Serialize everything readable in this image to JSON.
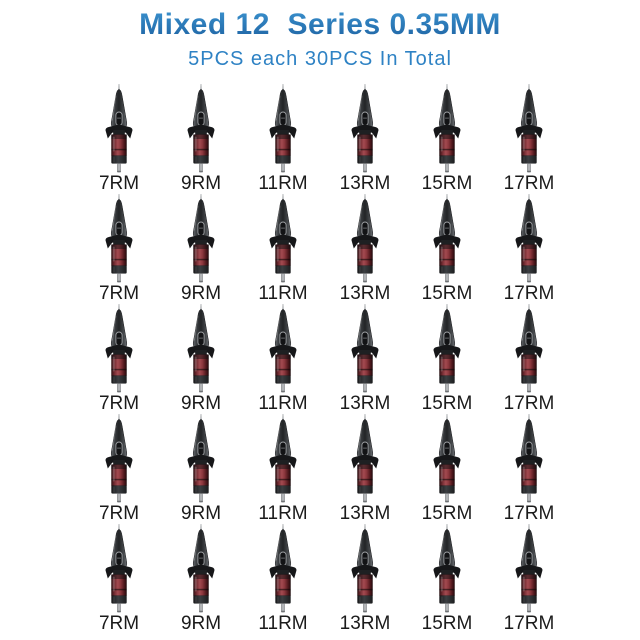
{
  "header": {
    "title": "Mixed 12  Series 0.35MM",
    "subtitle": "5PCS each 30PCS In Total"
  },
  "grid": {
    "rows": 5,
    "columns": 6,
    "cell_labels": [
      "7RM",
      "9RM",
      "11RM",
      "13RM",
      "15RM",
      "17RM"
    ],
    "pieces_per_size": "5PCS",
    "total_pieces": "30PCS",
    "item_description": "tattoo needle cartridge"
  },
  "colors": {
    "background": "#ffffff",
    "title_gradient_top": "#3e97d3",
    "title_gradient_bottom": "#1a5d9d",
    "subtitle_blue": "#2e82c4",
    "label_text": "#1b1b1b",
    "cartridge_body_red": "#8c3a40",
    "cartridge_plastic_dark": "#2b2d2f",
    "needle_gray": "#b5b7b9"
  }
}
